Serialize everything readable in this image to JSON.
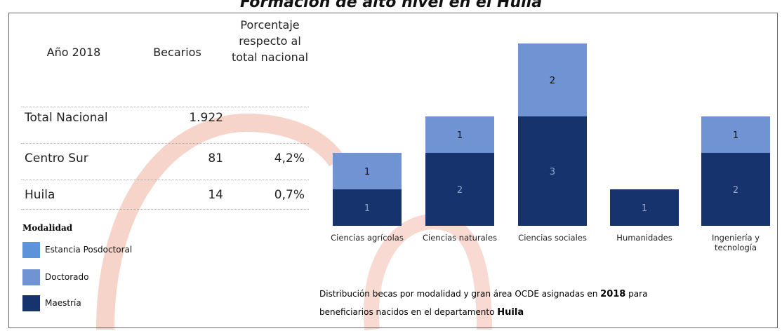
{
  "title": "Formación de alto nivel en el Huila",
  "table": {
    "headers": [
      "Año 2018",
      "Becarios",
      "Porcentaje respecto al total nacional"
    ],
    "rows": [
      [
        "Total Nacional",
        "1.922"
      ],
      [
        "Centro Sur",
        "81",
        "4,2%"
      ],
      [
        "Huila",
        "14",
        "0,7%"
      ]
    ]
  },
  "chart_data": {
    "type": "stacked-bar",
    "legend_title": "Modalidad",
    "categories": [
      "Ciencias agrícolas",
      "Ciencias naturales",
      "Ciencias sociales",
      "Humanidades",
      "Ingeniería y tecnología"
    ],
    "series": [
      {
        "name": "Estancia Posdoctoral",
        "color": "#5d93d9",
        "values": [
          0,
          0,
          0,
          0,
          0
        ]
      },
      {
        "name": "Doctorado",
        "color": "#7093d3",
        "values": [
          1,
          1,
          2,
          0,
          1
        ]
      },
      {
        "name": "Maestría",
        "color": "#17336e",
        "values": [
          1,
          2,
          3,
          1,
          2
        ]
      }
    ],
    "ylim": [
      0,
      5
    ],
    "caption": [
      [
        {
          "text": "Distribución becas por modalidad y gran área OCDE asignadas en ",
          "bold": false
        },
        {
          "text": "2018",
          "bold": true
        },
        {
          "text": " para",
          "bold": false
        }
      ],
      [
        {
          "text": "beneficiarios nacidos en el departamento ",
          "bold": false
        },
        {
          "text": "Huila",
          "bold": true
        }
      ]
    ]
  }
}
